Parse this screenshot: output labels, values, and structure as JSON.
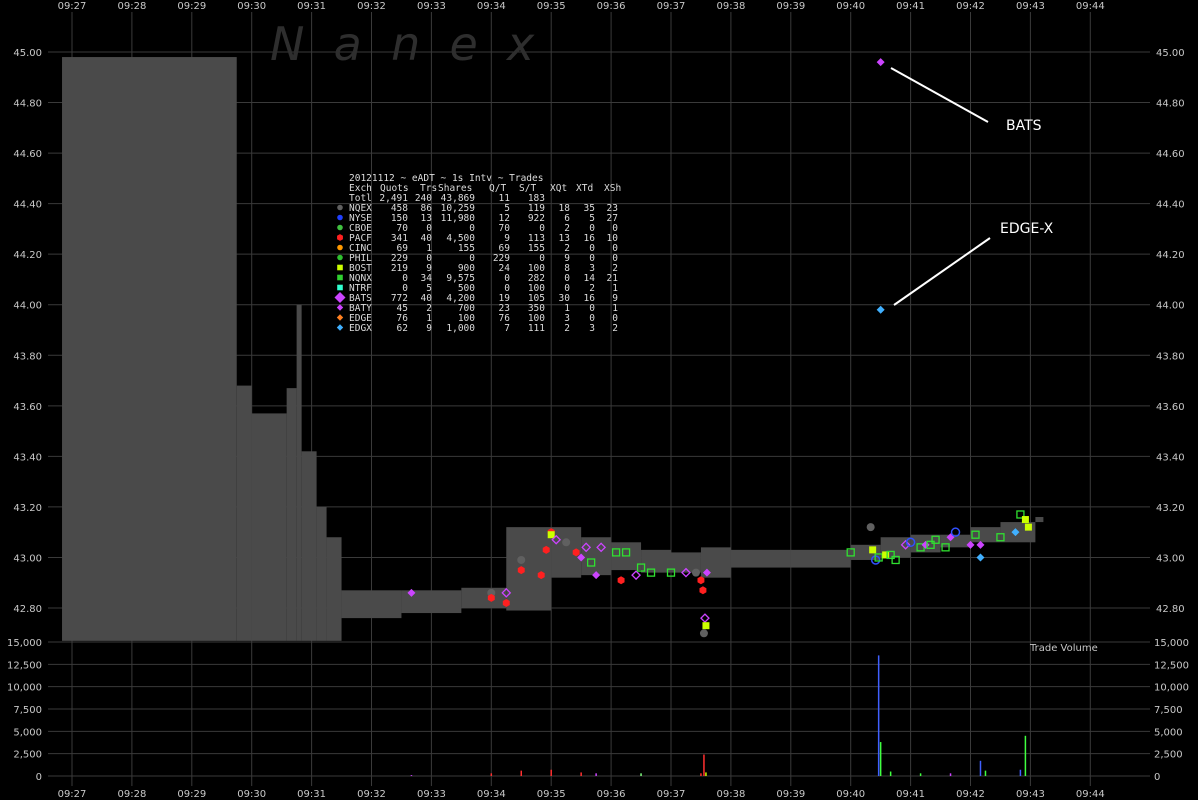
{
  "watermark": "N  a  n  e  x",
  "chart_data": {
    "type": "scatter",
    "title": "20121112 ~ eADT ~ 1s Intv ~ Trades",
    "x_ticks": [
      "09:27",
      "09:28",
      "09:29",
      "09:30",
      "09:31",
      "09:32",
      "09:33",
      "09:34",
      "09:35",
      "09:36",
      "09:37",
      "09:38",
      "09:39",
      "09:40",
      "09:41",
      "09:42",
      "09:43",
      "09:44"
    ],
    "price_axis": {
      "ticks": [
        "45.00",
        "44.80",
        "44.60",
        "44.40",
        "44.20",
        "44.00",
        "43.80",
        "43.60",
        "43.40",
        "43.20",
        "43.00",
        "42.80"
      ],
      "ylim": [
        42.74,
        45.15
      ]
    },
    "volume_axis": {
      "label": "Trade Volume",
      "ticks": [
        "15,000",
        "12,500",
        "10,000",
        "7,500",
        "5,000",
        "2,500",
        "0"
      ],
      "ylim": [
        0,
        15000
      ]
    },
    "grid": true,
    "annotations": [
      {
        "text": "BATS",
        "time": "09:40:30",
        "price": 44.96
      },
      {
        "text": "EDGE-X",
        "time": "09:40:30",
        "price": 43.98
      }
    ],
    "quote_band": [
      {
        "t": "09:26:50",
        "low": 42.67,
        "high": 44.98
      },
      {
        "t": "09:29:45",
        "low": 42.67,
        "high": 43.68
      },
      {
        "t": "09:30:00",
        "low": 42.67,
        "high": 43.57
      },
      {
        "t": "09:30:35",
        "low": 42.67,
        "high": 43.67
      },
      {
        "t": "09:30:45",
        "low": 42.67,
        "high": 44.0
      },
      {
        "t": "09:30:50",
        "low": 42.67,
        "high": 43.42
      },
      {
        "t": "09:31:05",
        "low": 42.67,
        "high": 43.2
      },
      {
        "t": "09:31:15",
        "low": 42.67,
        "high": 43.08
      },
      {
        "t": "09:31:30",
        "low": 42.76,
        "high": 42.87
      },
      {
        "t": "09:32:30",
        "low": 42.78,
        "high": 42.87
      },
      {
        "t": "09:33:30",
        "low": 42.8,
        "high": 42.88
      },
      {
        "t": "09:34:15",
        "low": 42.79,
        "high": 43.12
      },
      {
        "t": "09:35:00",
        "low": 42.92,
        "high": 43.12
      },
      {
        "t": "09:35:30",
        "low": 42.93,
        "high": 43.08
      },
      {
        "t": "09:36:00",
        "low": 42.95,
        "high": 43.06
      },
      {
        "t": "09:36:30",
        "low": 42.94,
        "high": 43.03
      },
      {
        "t": "09:37:00",
        "low": 42.94,
        "high": 43.02
      },
      {
        "t": "09:37:30",
        "low": 42.92,
        "high": 43.04
      },
      {
        "t": "09:38:00",
        "low": 42.96,
        "high": 43.03
      },
      {
        "t": "09:39:00",
        "low": 42.96,
        "high": 43.03
      },
      {
        "t": "09:40:00",
        "low": 42.99,
        "high": 43.05
      },
      {
        "t": "09:40:30",
        "low": 43.0,
        "high": 43.08
      },
      {
        "t": "09:41:00",
        "low": 43.02,
        "high": 43.09
      },
      {
        "t": "09:41:30",
        "low": 43.04,
        "high": 43.09
      },
      {
        "t": "09:42:00",
        "low": 43.06,
        "high": 43.12
      },
      {
        "t": "09:42:30",
        "low": 43.06,
        "high": 43.14
      },
      {
        "t": "09:43:05",
        "low": 43.14,
        "high": 43.16
      }
    ],
    "trades": [
      {
        "t": "09:32:40",
        "price": 42.86,
        "exch": "BATS"
      },
      {
        "t": "09:34:00",
        "price": 42.86,
        "exch": "NQEX"
      },
      {
        "t": "09:34:00",
        "price": 42.84,
        "exch": "PACF"
      },
      {
        "t": "09:34:15",
        "price": 42.82,
        "exch": "PACF"
      },
      {
        "t": "09:34:15",
        "price": 42.86,
        "exch": "BATY"
      },
      {
        "t": "09:34:30",
        "price": 42.95,
        "exch": "PACF"
      },
      {
        "t": "09:34:30",
        "price": 42.99,
        "exch": "NQEX"
      },
      {
        "t": "09:34:50",
        "price": 42.93,
        "exch": "PACF"
      },
      {
        "t": "09:34:55",
        "price": 43.03,
        "exch": "PACF"
      },
      {
        "t": "09:35:00",
        "price": 43.1,
        "exch": "PACF"
      },
      {
        "t": "09:35:00",
        "price": 43.09,
        "exch": "BOST"
      },
      {
        "t": "09:35:05",
        "price": 43.07,
        "exch": "BATY"
      },
      {
        "t": "09:35:15",
        "price": 43.06,
        "exch": "NQEX"
      },
      {
        "t": "09:35:25",
        "price": 43.02,
        "exch": "PACF"
      },
      {
        "t": "09:35:30",
        "price": 43.0,
        "exch": "BATS"
      },
      {
        "t": "09:35:35",
        "price": 43.04,
        "exch": "BATY"
      },
      {
        "t": "09:35:40",
        "price": 42.98,
        "exch": "NQNX"
      },
      {
        "t": "09:35:45",
        "price": 42.93,
        "exch": "BATS"
      },
      {
        "t": "09:35:50",
        "price": 43.04,
        "exch": "BATY"
      },
      {
        "t": "09:36:05",
        "price": 43.02,
        "exch": "NQNX"
      },
      {
        "t": "09:36:10",
        "price": 42.91,
        "exch": "PACF"
      },
      {
        "t": "09:36:15",
        "price": 43.02,
        "exch": "NQNX"
      },
      {
        "t": "09:36:25",
        "price": 42.93,
        "exch": "BATY"
      },
      {
        "t": "09:36:30",
        "price": 42.96,
        "exch": "NQNX"
      },
      {
        "t": "09:36:40",
        "price": 42.94,
        "exch": "NQNX"
      },
      {
        "t": "09:37:00",
        "price": 42.94,
        "exch": "NQNX"
      },
      {
        "t": "09:37:15",
        "price": 42.94,
        "exch": "BATY"
      },
      {
        "t": "09:37:25",
        "price": 42.94,
        "exch": "NQEX"
      },
      {
        "t": "09:37:30",
        "price": 42.91,
        "exch": "PACF"
      },
      {
        "t": "09:37:32",
        "price": 42.87,
        "exch": "PACF"
      },
      {
        "t": "09:37:34",
        "price": 42.76,
        "exch": "BATY"
      },
      {
        "t": "09:37:35",
        "price": 42.73,
        "exch": "BOST"
      },
      {
        "t": "09:37:33",
        "price": 42.7,
        "exch": "NQEX"
      },
      {
        "t": "09:37:36",
        "price": 42.94,
        "exch": "BATS"
      },
      {
        "t": "09:40:00",
        "price": 43.02,
        "exch": "NQNX"
      },
      {
        "t": "09:40:20",
        "price": 43.12,
        "exch": "NQEX"
      },
      {
        "t": "09:40:22",
        "price": 43.03,
        "exch": "BOST"
      },
      {
        "t": "09:40:25",
        "price": 42.99,
        "exch": "NYSE"
      },
      {
        "t": "09:40:28",
        "price": 43.0,
        "exch": "NQNX"
      },
      {
        "t": "09:40:30",
        "price": 44.96,
        "exch": "BATS"
      },
      {
        "t": "09:40:30",
        "price": 43.98,
        "exch": "EDGX"
      },
      {
        "t": "09:40:35",
        "price": 43.01,
        "exch": "BOST"
      },
      {
        "t": "09:40:40",
        "price": 43.01,
        "exch": "NQNX"
      },
      {
        "t": "09:40:45",
        "price": 42.99,
        "exch": "NQNX"
      },
      {
        "t": "09:40:55",
        "price": 43.05,
        "exch": "BATY"
      },
      {
        "t": "09:41:00",
        "price": 43.06,
        "exch": "NYSE"
      },
      {
        "t": "09:41:10",
        "price": 43.04,
        "exch": "NQNX"
      },
      {
        "t": "09:41:15",
        "price": 43.05,
        "exch": "BATS"
      },
      {
        "t": "09:41:20",
        "price": 43.05,
        "exch": "NQNX"
      },
      {
        "t": "09:41:25",
        "price": 43.07,
        "exch": "NQNX"
      },
      {
        "t": "09:41:35",
        "price": 43.04,
        "exch": "NQNX"
      },
      {
        "t": "09:41:40",
        "price": 43.08,
        "exch": "BATS"
      },
      {
        "t": "09:41:45",
        "price": 43.1,
        "exch": "NYSE"
      },
      {
        "t": "09:42:00",
        "price": 43.05,
        "exch": "BATS"
      },
      {
        "t": "09:42:05",
        "price": 43.09,
        "exch": "NQNX"
      },
      {
        "t": "09:42:10",
        "price": 43.05,
        "exch": "BATS"
      },
      {
        "t": "09:42:10",
        "price": 43.0,
        "exch": "EDGX"
      },
      {
        "t": "09:42:30",
        "price": 43.08,
        "exch": "NQNX"
      },
      {
        "t": "09:42:45",
        "price": 43.1,
        "exch": "EDGX"
      },
      {
        "t": "09:42:50",
        "price": 43.17,
        "exch": "NQNX"
      },
      {
        "t": "09:42:55",
        "price": 43.15,
        "exch": "BOST"
      },
      {
        "t": "09:42:58",
        "price": 43.12,
        "exch": "BOST"
      }
    ],
    "volume_bars": [
      {
        "t": "09:32:40",
        "volume": 100,
        "color": "#cc44ff"
      },
      {
        "t": "09:34:00",
        "volume": 300,
        "color": "#ff3030"
      },
      {
        "t": "09:34:30",
        "volume": 600,
        "color": "#ff3030"
      },
      {
        "t": "09:35:00",
        "volume": 700,
        "color": "#ff3030"
      },
      {
        "t": "09:35:30",
        "volume": 400,
        "color": "#ff3030"
      },
      {
        "t": "09:35:45",
        "volume": 300,
        "color": "#cc44ff"
      },
      {
        "t": "09:36:30",
        "volume": 300,
        "color": "#80ff80"
      },
      {
        "t": "09:37:30",
        "volume": 300,
        "color": "#ff3030"
      },
      {
        "t": "09:37:33",
        "volume": 2400,
        "color": "#ff3030"
      },
      {
        "t": "09:37:35",
        "volume": 400,
        "color": "#ccff00"
      },
      {
        "t": "09:40:28",
        "volume": 13500,
        "color": "#4060ff"
      },
      {
        "t": "09:40:30",
        "volume": 3800,
        "color": "#40ff40"
      },
      {
        "t": "09:40:40",
        "volume": 500,
        "color": "#40ff40"
      },
      {
        "t": "09:41:10",
        "volume": 300,
        "color": "#40ff40"
      },
      {
        "t": "09:41:40",
        "volume": 300,
        "color": "#cc44ff"
      },
      {
        "t": "09:42:10",
        "volume": 1700,
        "color": "#4060ff"
      },
      {
        "t": "09:42:15",
        "volume": 600,
        "color": "#40ff40"
      },
      {
        "t": "09:42:55",
        "volume": 4500,
        "color": "#40ff40"
      },
      {
        "t": "09:42:50",
        "volume": 700,
        "color": "#4060ff"
      }
    ],
    "table": {
      "header": [
        "Exch",
        "Quots",
        "Trs",
        "Shares",
        "Q/T",
        "S/T",
        "XQt",
        "XTd",
        "XSh"
      ],
      "rows": [
        {
          "symbol": "none",
          "color": "",
          "cells": [
            "Totl",
            "2,491",
            "240",
            "43,869",
            "11",
            "183",
            "",
            "",
            ""
          ]
        },
        {
          "symbol": "circle",
          "color": "#606060",
          "cells": [
            "NQEX",
            "458",
            "86",
            "10,259",
            "5",
            "119",
            "18",
            "35",
            "23"
          ]
        },
        {
          "symbol": "circle",
          "color": "#2040ff",
          "cells": [
            "NYSE",
            "150",
            "13",
            "11,980",
            "12",
            "922",
            "6",
            "5",
            "27"
          ]
        },
        {
          "symbol": "circle",
          "color": "#40c040",
          "cells": [
            "CBOE",
            "70",
            "0",
            "0",
            "70",
            "0",
            "2",
            "0",
            "0"
          ]
        },
        {
          "symbol": "hex",
          "color": "#ff2020",
          "cells": [
            "PACF",
            "341",
            "40",
            "4,500",
            "9",
            "113",
            "13",
            "16",
            "10"
          ]
        },
        {
          "symbol": "circle",
          "color": "#ff9900",
          "cells": [
            "CINC",
            "69",
            "1",
            "155",
            "69",
            "155",
            "2",
            "0",
            "0"
          ]
        },
        {
          "symbol": "circle",
          "color": "#30c030",
          "cells": [
            "PHIL",
            "229",
            "0",
            "0",
            "229",
            "0",
            "9",
            "0",
            "0"
          ]
        },
        {
          "symbol": "square",
          "color": "#ccff00",
          "cells": [
            "BOST",
            "219",
            "9",
            "900",
            "24",
            "100",
            "8",
            "3",
            "2"
          ]
        },
        {
          "symbol": "square",
          "color": "#30d030",
          "cells": [
            "NQNX",
            "0",
            "34",
            "9,575",
            "0",
            "282",
            "0",
            "14",
            "21"
          ]
        },
        {
          "symbol": "square",
          "color": "#30ffd0",
          "cells": [
            "NTRF",
            "0",
            "5",
            "500",
            "0",
            "100",
            "0",
            "2",
            "1"
          ]
        },
        {
          "symbol": "diamond-lg",
          "color": "#cc44ff",
          "cells": [
            "BATS",
            "772",
            "40",
            "4,200",
            "19",
            "105",
            "30",
            "16",
            "9"
          ]
        },
        {
          "symbol": "diamond",
          "color": "#cc44ff",
          "cells": [
            "BATY",
            "45",
            "2",
            "700",
            "23",
            "350",
            "1",
            "0",
            "1"
          ]
        },
        {
          "symbol": "diamond",
          "color": "#ff8020",
          "cells": [
            "EDGE",
            "76",
            "1",
            "100",
            "76",
            "100",
            "3",
            "0",
            "0"
          ]
        },
        {
          "symbol": "diamond",
          "color": "#40b0ff",
          "cells": [
            "EDGX",
            "62",
            "9",
            "1,000",
            "7",
            "111",
            "2",
            "3",
            "2"
          ]
        }
      ]
    },
    "colors": {
      "background": "#000000",
      "grid": "#3a3a3a",
      "quote_band": "#4a4a4a",
      "NQEX": "#606060",
      "NYSE": "#3050ff",
      "PACF": "#ff2020",
      "BOST": "#ccff00",
      "NQNX": "#30e030",
      "BATS": "#cc44ff",
      "BATY": "#cc44ff",
      "EDGX": "#40b0ff"
    }
  }
}
